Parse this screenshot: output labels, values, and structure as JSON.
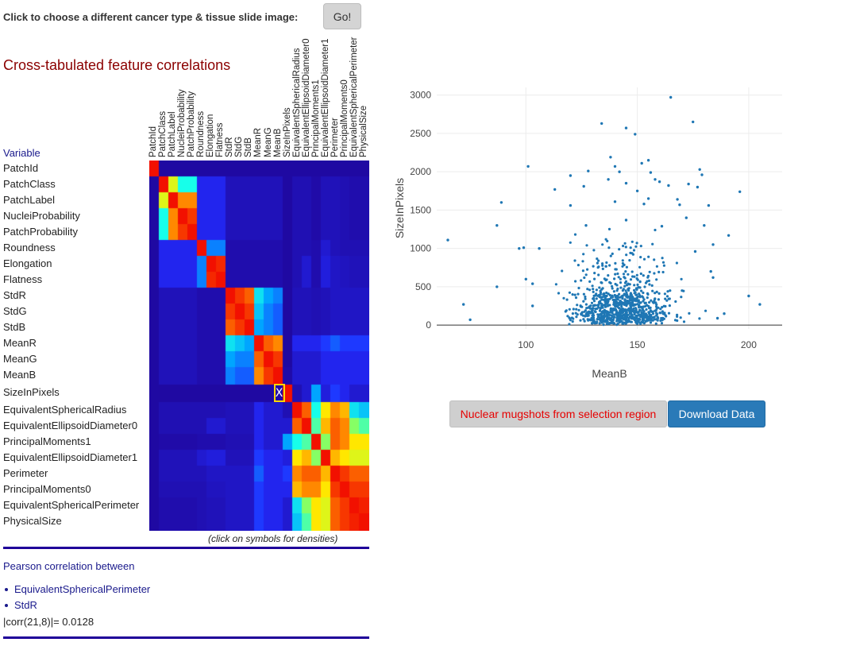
{
  "header": {
    "choose_label": "Click to choose a different cancer type & tissue slide image:",
    "go_label": "Go!"
  },
  "section_title": "Cross-tabulated feature correlations",
  "matrix": {
    "variable_header": "Variable",
    "variables": [
      "PatchId",
      "PatchClass",
      "PatchLabel",
      "NucleiProbability",
      "PatchProbability",
      "Roundness",
      "Elongation",
      "Flatness",
      "StdR",
      "StdG",
      "StdB",
      "MeanR",
      "MeanG",
      "MeanB",
      "SizeInPixels",
      "EquivalentSphericalRadius",
      "EquivalentEllipsoidDiameter0",
      "PrincipalMoments1",
      "EquivalentEllipsoidDiameter1",
      "Perimeter",
      "PrincipalMoments0",
      "EquivalentSphericalPerimeter",
      "PhysicalSize"
    ],
    "values": [
      [
        1,
        0.02,
        0.02,
        0.02,
        0.02,
        0.02,
        0.02,
        0.02,
        0.02,
        0.02,
        0.02,
        0.02,
        0.02,
        0.02,
        0.02,
        0.02,
        0.02,
        0.02,
        0.02,
        0.02,
        0.02,
        0.02,
        0.02
      ],
      [
        0.02,
        1,
        0.7,
        0.5,
        0.5,
        0.15,
        0.15,
        0.15,
        0.06,
        0.06,
        0.06,
        0.06,
        0.06,
        0.06,
        0.02,
        0.05,
        0.05,
        0.03,
        0.06,
        0.06,
        0.05,
        0.04,
        0.04
      ],
      [
        0.02,
        0.7,
        1,
        0.85,
        0.85,
        0.15,
        0.15,
        0.15,
        0.06,
        0.06,
        0.06,
        0.06,
        0.06,
        0.06,
        0.02,
        0.05,
        0.05,
        0.03,
        0.06,
        0.06,
        0.05,
        0.04,
        0.04
      ],
      [
        0.02,
        0.5,
        0.85,
        1,
        0.95,
        0.15,
        0.15,
        0.15,
        0.06,
        0.06,
        0.06,
        0.06,
        0.06,
        0.06,
        0.02,
        0.05,
        0.05,
        0.03,
        0.06,
        0.06,
        0.05,
        0.04,
        0.04
      ],
      [
        0.02,
        0.5,
        0.85,
        0.95,
        1,
        0.15,
        0.15,
        0.15,
        0.06,
        0.06,
        0.06,
        0.06,
        0.06,
        0.06,
        0.02,
        0.05,
        0.05,
        0.03,
        0.06,
        0.06,
        0.05,
        0.04,
        0.04
      ],
      [
        0.02,
        0.15,
        0.15,
        0.15,
        0.15,
        1,
        0.3,
        0.3,
        0.04,
        0.04,
        0.04,
        0.04,
        0.04,
        0.04,
        0.02,
        0.05,
        0.05,
        0.04,
        0.1,
        0.06,
        0.05,
        0.05,
        0.05
      ],
      [
        0.02,
        0.15,
        0.15,
        0.15,
        0.15,
        0.3,
        1,
        0.97,
        0.04,
        0.04,
        0.04,
        0.04,
        0.04,
        0.04,
        0.02,
        0.05,
        0.1,
        0.04,
        0.12,
        0.08,
        0.07,
        0.06,
        0.06
      ],
      [
        0.02,
        0.15,
        0.15,
        0.15,
        0.15,
        0.3,
        0.97,
        1,
        0.04,
        0.04,
        0.04,
        0.04,
        0.04,
        0.04,
        0.02,
        0.05,
        0.1,
        0.04,
        0.12,
        0.08,
        0.07,
        0.06,
        0.06
      ],
      [
        0.02,
        0.06,
        0.06,
        0.06,
        0.06,
        0.04,
        0.04,
        0.04,
        1,
        0.95,
        0.9,
        0.45,
        0.35,
        0.3,
        0.02,
        0.06,
        0.06,
        0.05,
        0.06,
        0.08,
        0.08,
        0.08,
        0.08
      ],
      [
        0.02,
        0.06,
        0.06,
        0.06,
        0.06,
        0.04,
        0.04,
        0.04,
        0.95,
        1,
        0.95,
        0.4,
        0.3,
        0.25,
        0.02,
        0.06,
        0.06,
        0.05,
        0.06,
        0.08,
        0.08,
        0.08,
        0.08
      ],
      [
        0.02,
        0.06,
        0.06,
        0.06,
        0.06,
        0.04,
        0.04,
        0.04,
        0.9,
        0.95,
        1,
        0.35,
        0.3,
        0.25,
        0.02,
        0.06,
        0.06,
        0.05,
        0.06,
        0.08,
        0.08,
        0.08,
        0.08
      ],
      [
        0.02,
        0.06,
        0.06,
        0.06,
        0.06,
        0.04,
        0.04,
        0.04,
        0.45,
        0.4,
        0.35,
        1,
        0.9,
        0.85,
        0.02,
        0.15,
        0.15,
        0.15,
        0.2,
        0.25,
        0.2,
        0.2,
        0.2
      ],
      [
        0.02,
        0.06,
        0.06,
        0.06,
        0.06,
        0.04,
        0.04,
        0.04,
        0.35,
        0.3,
        0.3,
        0.9,
        1,
        0.95,
        0.02,
        0.1,
        0.1,
        0.1,
        0.15,
        0.15,
        0.15,
        0.15,
        0.15
      ],
      [
        0.02,
        0.06,
        0.06,
        0.06,
        0.06,
        0.04,
        0.04,
        0.04,
        0.3,
        0.25,
        0.25,
        0.85,
        0.95,
        1,
        0.03,
        0.1,
        0.1,
        0.1,
        0.15,
        0.15,
        0.15,
        0.15,
        0.15
      ],
      [
        0.02,
        0.02,
        0.02,
        0.02,
        0.02,
        0.02,
        0.02,
        0.02,
        0.02,
        0.02,
        0.02,
        0.02,
        0.02,
        0.03,
        1,
        0.05,
        0.1,
        0.35,
        0.12,
        0.2,
        0.15,
        0.1,
        0.1
      ],
      [
        0.02,
        0.05,
        0.05,
        0.05,
        0.05,
        0.05,
        0.05,
        0.05,
        0.06,
        0.06,
        0.06,
        0.15,
        0.1,
        0.1,
        0.05,
        1,
        0.9,
        0.5,
        0.75,
        0.85,
        0.8,
        0.45,
        0.4
      ],
      [
        0.02,
        0.05,
        0.05,
        0.05,
        0.05,
        0.05,
        0.1,
        0.1,
        0.06,
        0.06,
        0.06,
        0.15,
        0.1,
        0.1,
        0.1,
        0.9,
        1,
        0.55,
        0.8,
        0.9,
        0.85,
        0.6,
        0.55
      ],
      [
        0.02,
        0.03,
        0.03,
        0.03,
        0.03,
        0.04,
        0.04,
        0.04,
        0.05,
        0.05,
        0.05,
        0.15,
        0.1,
        0.1,
        0.35,
        0.5,
        0.55,
        1,
        0.6,
        0.9,
        0.85,
        0.75,
        0.75
      ],
      [
        0.02,
        0.06,
        0.06,
        0.06,
        0.06,
        0.1,
        0.12,
        0.12,
        0.06,
        0.06,
        0.06,
        0.2,
        0.15,
        0.15,
        0.12,
        0.75,
        0.8,
        0.6,
        1,
        0.8,
        0.75,
        0.7,
        0.7
      ],
      [
        0.02,
        0.06,
        0.06,
        0.06,
        0.06,
        0.06,
        0.08,
        0.08,
        0.08,
        0.08,
        0.08,
        0.25,
        0.15,
        0.15,
        0.2,
        0.85,
        0.9,
        0.9,
        0.8,
        1,
        0.95,
        0.9,
        0.9
      ],
      [
        0.02,
        0.05,
        0.05,
        0.05,
        0.05,
        0.05,
        0.07,
        0.07,
        0.08,
        0.08,
        0.08,
        0.2,
        0.15,
        0.15,
        0.15,
        0.8,
        0.85,
        0.85,
        0.75,
        0.95,
        1,
        0.95,
        0.95
      ],
      [
        0.02,
        0.04,
        0.04,
        0.04,
        0.04,
        0.05,
        0.06,
        0.06,
        0.08,
        0.08,
        0.08,
        0.2,
        0.15,
        0.15,
        0.1,
        0.45,
        0.6,
        0.75,
        0.7,
        0.9,
        0.95,
        1,
        0.98
      ],
      [
        0.02,
        0.04,
        0.04,
        0.04,
        0.04,
        0.05,
        0.06,
        0.06,
        0.08,
        0.08,
        0.08,
        0.2,
        0.15,
        0.15,
        0.1,
        0.4,
        0.55,
        0.75,
        0.7,
        0.9,
        0.95,
        0.98,
        1
      ]
    ],
    "selected": {
      "row": 14,
      "col": 13,
      "symbol": "X"
    },
    "marker_color": "#ffd700",
    "hint": "(click on symbols for densities)"
  },
  "pearson": {
    "title": "Pearson correlation between",
    "items": [
      "EquivalentSphericalPerimeter",
      "StdR"
    ],
    "corr_text": "|corr(21,8)|= 0.0128"
  },
  "chart_data": {
    "type": "scatter",
    "title": "",
    "xlabel": "MeanB",
    "ylabel": "SizeInPixels",
    "xlim": [
      60,
      215
    ],
    "ylim": [
      -50,
      3100
    ],
    "xticks": [
      100,
      150,
      200
    ],
    "yticks": [
      0,
      500,
      1000,
      1500,
      2000,
      2500,
      3000
    ],
    "grid": true,
    "color": "#1f77b4",
    "points_estimated": [
      [
        65,
        1110
      ],
      [
        72,
        270
      ],
      [
        75,
        70
      ],
      [
        87,
        1300
      ],
      [
        87,
        500
      ],
      [
        89,
        1600
      ],
      [
        97,
        1000
      ],
      [
        99,
        1010
      ],
      [
        100,
        600
      ],
      [
        101,
        2070
      ],
      [
        103,
        540
      ],
      [
        103,
        250
      ],
      [
        106,
        1000
      ],
      [
        113,
        1770
      ],
      [
        120,
        1950
      ],
      [
        120,
        1560
      ],
      [
        126,
        1810
      ],
      [
        127,
        1300
      ],
      [
        128,
        2010
      ],
      [
        134,
        2630
      ],
      [
        137,
        1900
      ],
      [
        138,
        2190
      ],
      [
        140,
        2070
      ],
      [
        140,
        1610
      ],
      [
        142,
        2000
      ],
      [
        145,
        2570
      ],
      [
        145,
        1370
      ],
      [
        145,
        1850
      ],
      [
        149,
        2490
      ],
      [
        150,
        1750
      ],
      [
        152,
        2110
      ],
      [
        153,
        1580
      ],
      [
        155,
        1650
      ],
      [
        155,
        2150
      ],
      [
        156,
        1990
      ],
      [
        158,
        1900
      ],
      [
        160,
        1870
      ],
      [
        161,
        1290
      ],
      [
        164,
        1820
      ],
      [
        165,
        2970
      ],
      [
        168,
        1640
      ],
      [
        169,
        1570
      ],
      [
        172,
        1400
      ],
      [
        173,
        1840
      ],
      [
        175,
        2650
      ],
      [
        176,
        960
      ],
      [
        177,
        1800
      ],
      [
        178,
        2030
      ],
      [
        179,
        1960
      ],
      [
        180,
        1300
      ],
      [
        182,
        1560
      ],
      [
        183,
        700
      ],
      [
        184,
        1050
      ],
      [
        184,
        620
      ],
      [
        186,
        90
      ],
      [
        189,
        150
      ],
      [
        191,
        1170
      ],
      [
        196,
        1740
      ],
      [
        200,
        380
      ],
      [
        205,
        270
      ]
    ]
  },
  "buttons": {
    "mugshot_label": "Nuclear mugshots from selection region",
    "download_label": "Download Data"
  }
}
